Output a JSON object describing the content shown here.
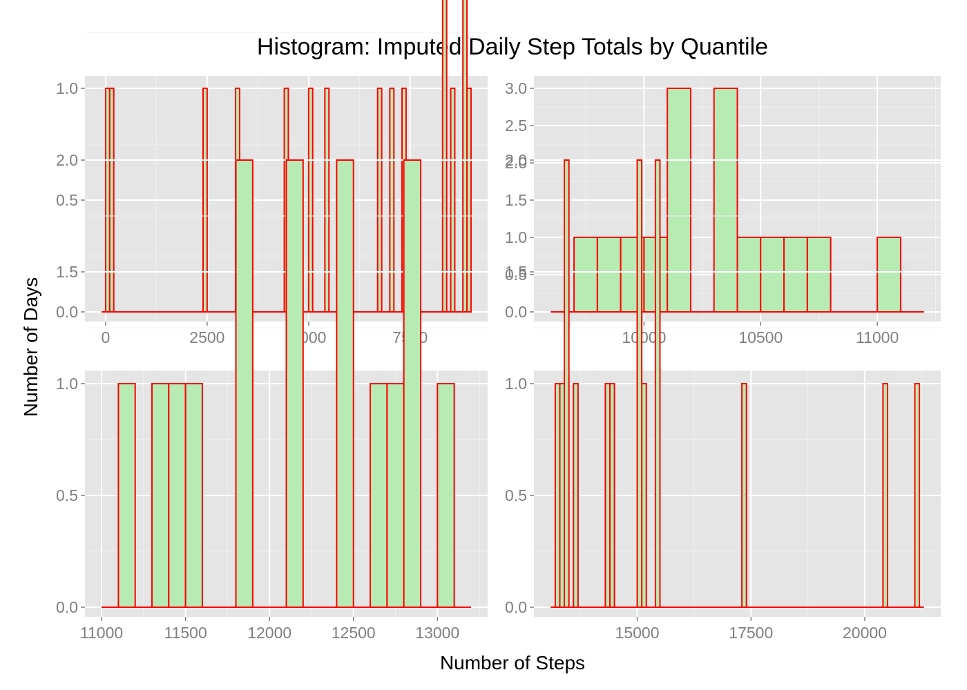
{
  "chart_data": {
    "type": "histogram-facets",
    "title": "Histogram: Imputed Daily Step Totals by Quantile",
    "xlabel": "Number of Steps",
    "ylabel": "Number of Days",
    "grid": true,
    "colors": {
      "panel_bg": "#e5e5e5",
      "grid_major": "#ffffff",
      "grid_minor": "#f0f0f0",
      "bar_fill": "#b8eab3",
      "bar_stroke": "#ff0000",
      "tick_text": "#7f7f7f"
    },
    "panels": [
      {
        "xlim": [
          -100,
          9000
        ],
        "ylim": [
          0,
          2
        ],
        "x_ticks": [
          0,
          2500,
          5000,
          7500
        ],
        "x_tick_labels": [
          "0",
          "2500",
          "5000",
          "7500"
        ],
        "y_ticks": [
          0,
          0.5,
          1,
          1.5,
          2
        ],
        "y_tick_labels": [
          "0.0",
          "0.5",
          "1.0",
          "1.5",
          "2.0"
        ],
        "baseline": [
          -100,
          9000
        ],
        "bins": [
          {
            "x0": 0,
            "x1": 100,
            "count": 1
          },
          {
            "x0": 100,
            "x1": 200,
            "count": 1
          },
          {
            "x0": 2400,
            "x1": 2500,
            "count": 1
          },
          {
            "x0": 3200,
            "x1": 3300,
            "count": 1
          },
          {
            "x0": 4400,
            "x1": 4500,
            "count": 1
          },
          {
            "x0": 5000,
            "x1": 5100,
            "count": 1
          },
          {
            "x0": 5400,
            "x1": 5500,
            "count": 1
          },
          {
            "x0": 6700,
            "x1": 6800,
            "count": 1
          },
          {
            "x0": 7000,
            "x1": 7100,
            "count": 1
          },
          {
            "x0": 7300,
            "x1": 7400,
            "count": 1
          },
          {
            "x0": 8300,
            "x1": 8400,
            "count": 2
          },
          {
            "x0": 8500,
            "x1": 8600,
            "count": 1
          },
          {
            "x0": 8800,
            "x1": 8900,
            "count": 2
          },
          {
            "x0": 8900,
            "x1": 9000,
            "count": 1
          }
        ]
      },
      {
        "xlim": [
          9600,
          11200
        ],
        "ylim": [
          0,
          3
        ],
        "x_ticks": [
          10000,
          10500,
          11000
        ],
        "x_tick_labels": [
          "10000",
          "10500",
          "11000"
        ],
        "y_ticks": [
          0,
          0.5,
          1,
          1.5,
          2,
          2.5,
          3
        ],
        "y_tick_labels": [
          "0.0",
          "0.5",
          "1.0",
          "1.5",
          "2.0",
          "2.5",
          "3.0"
        ],
        "baseline": [
          9600,
          11200
        ],
        "bins": [
          {
            "x0": 9700,
            "x1": 9800,
            "count": 1
          },
          {
            "x0": 9800,
            "x1": 9900,
            "count": 1
          },
          {
            "x0": 9900,
            "x1": 10000,
            "count": 1
          },
          {
            "x0": 10000,
            "x1": 10100,
            "count": 1
          },
          {
            "x0": 10100,
            "x1": 10200,
            "count": 3
          },
          {
            "x0": 10300,
            "x1": 10400,
            "count": 3
          },
          {
            "x0": 10400,
            "x1": 10500,
            "count": 1
          },
          {
            "x0": 10500,
            "x1": 10600,
            "count": 1
          },
          {
            "x0": 10600,
            "x1": 10700,
            "count": 1
          },
          {
            "x0": 10700,
            "x1": 10800,
            "count": 1
          },
          {
            "x0": 11000,
            "x1": 11100,
            "count": 1
          }
        ]
      },
      {
        "xlim": [
          11000,
          13200
        ],
        "ylim": [
          0,
          2
        ],
        "x_ticks": [
          11000,
          11500,
          12000,
          12500,
          13000
        ],
        "x_tick_labels": [
          "11000",
          "11500",
          "12000",
          "12500",
          "13000"
        ],
        "y_ticks": [
          0,
          0.5,
          1,
          1.5,
          2
        ],
        "y_tick_labels": [
          "0.0",
          "0.5",
          "1.0",
          "1.5",
          "2.0"
        ],
        "baseline": [
          11000,
          13200
        ],
        "bins": [
          {
            "x0": 11100,
            "x1": 11200,
            "count": 1
          },
          {
            "x0": 11300,
            "x1": 11400,
            "count": 1
          },
          {
            "x0": 11400,
            "x1": 11500,
            "count": 1
          },
          {
            "x0": 11500,
            "x1": 11600,
            "count": 1
          },
          {
            "x0": 11800,
            "x1": 11900,
            "count": 2
          },
          {
            "x0": 12100,
            "x1": 12200,
            "count": 2
          },
          {
            "x0": 12400,
            "x1": 12500,
            "count": 2
          },
          {
            "x0": 12600,
            "x1": 12700,
            "count": 1
          },
          {
            "x0": 12700,
            "x1": 12800,
            "count": 1
          },
          {
            "x0": 12800,
            "x1": 12900,
            "count": 2
          },
          {
            "x0": 13000,
            "x1": 13100,
            "count": 1
          }
        ]
      },
      {
        "xlim": [
          13100,
          21300
        ],
        "ylim": [
          0,
          2
        ],
        "x_ticks": [
          15000,
          17500,
          20000
        ],
        "x_tick_labels": [
          "15000",
          "17500",
          "20000"
        ],
        "y_ticks": [
          0,
          0.5,
          1,
          1.5,
          2
        ],
        "y_tick_labels": [
          "0.0",
          "0.5",
          "1.0",
          "1.5",
          "2.0"
        ],
        "baseline": [
          13100,
          21300
        ],
        "bins": [
          {
            "x0": 13200,
            "x1": 13300,
            "count": 1
          },
          {
            "x0": 13300,
            "x1": 13400,
            "count": 1
          },
          {
            "x0": 13400,
            "x1": 13500,
            "count": 2
          },
          {
            "x0": 13600,
            "x1": 13700,
            "count": 1
          },
          {
            "x0": 14300,
            "x1": 14400,
            "count": 1
          },
          {
            "x0": 14400,
            "x1": 14500,
            "count": 1
          },
          {
            "x0": 15000,
            "x1": 15100,
            "count": 2
          },
          {
            "x0": 15100,
            "x1": 15200,
            "count": 1
          },
          {
            "x0": 15400,
            "x1": 15500,
            "count": 2
          },
          {
            "x0": 17300,
            "x1": 17400,
            "count": 1
          },
          {
            "x0": 20400,
            "x1": 20500,
            "count": 1
          },
          {
            "x0": 21100,
            "x1": 21200,
            "count": 1
          }
        ]
      }
    ]
  }
}
